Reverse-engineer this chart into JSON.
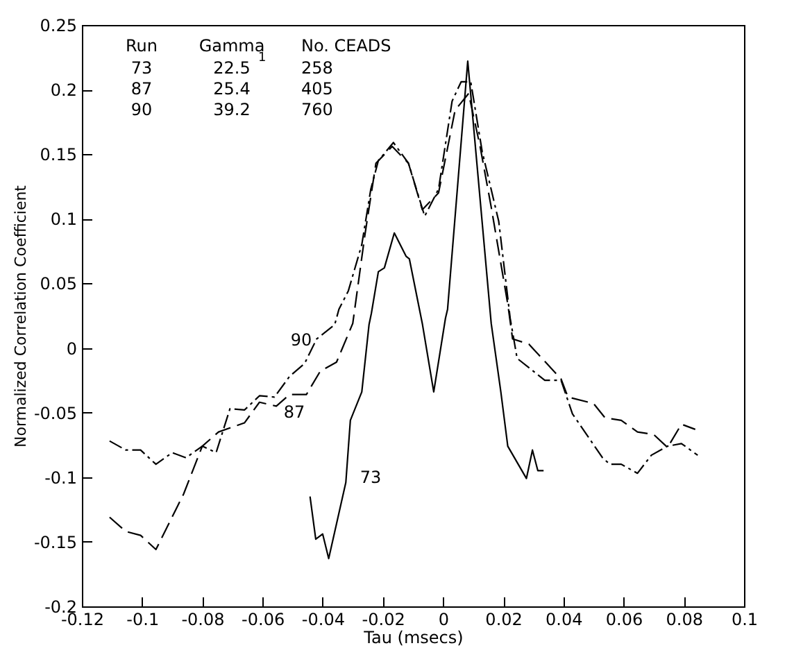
{
  "chart_data": {
    "type": "line",
    "xlabel": "Tau (msecs)",
    "ylabel": "Normalized Correlation Coefficient",
    "xlim": [
      -0.12,
      0.1
    ],
    "xticks": [
      -0.12,
      -0.1,
      -0.08,
      -0.06,
      -0.04,
      -0.02,
      0,
      0.02,
      0.04,
      0.06,
      0.08,
      0.1
    ],
    "ylim": [
      -0.2,
      0.25
    ],
    "yticks": [
      -0.2,
      -0.15,
      -0.1,
      -0.05,
      0,
      0.05,
      0.1,
      0.15,
      0.2,
      0.25
    ],
    "grid": false,
    "annotations": [
      "Run",
      "Gamma$_{1}$",
      "No. CEADS",
      "73",
      "22.5",
      "258",
      "87",
      "25.4",
      "405",
      "90",
      "39.2",
      "760"
    ],
    "series": [
      {
        "name": "73",
        "color": "#000000",
        "line_style": "solid",
        "x": [
          -0.0442,
          -0.0423,
          -0.04,
          -0.038,
          -0.0323,
          -0.0308,
          -0.027,
          -0.0246,
          -0.0238,
          -0.0215,
          -0.0195,
          -0.0162,
          -0.0123,
          -0.0112,
          -0.0069,
          -0.0031,
          0.0008,
          0.0015,
          0.0082,
          0.016,
          0.0192,
          0.0215,
          0.0277,
          0.0297,
          0.0315,
          0.0334
        ],
        "values": [
          -0.115,
          -0.148,
          -0.144,
          -0.163,
          -0.104,
          -0.056,
          -0.034,
          0.018,
          0.027,
          0.059,
          0.062,
          0.089,
          0.071,
          0.069,
          0.019,
          -0.034,
          0.023,
          0.03,
          0.222,
          0.019,
          -0.034,
          -0.076,
          -0.101,
          -0.079,
          -0.095,
          -0.095
        ]
      },
      {
        "name": "87",
        "color": "#000000",
        "line_style": "dashed",
        "x": [
          -0.1108,
          -0.1054,
          -0.1005,
          -0.0954,
          -0.0862,
          -0.08,
          -0.0746,
          -0.066,
          -0.061,
          -0.0554,
          -0.051,
          -0.0454,
          -0.0408,
          -0.0354,
          -0.03,
          -0.026,
          -0.0223,
          -0.0169,
          -0.0115,
          -0.0069,
          -0.0015,
          0.004,
          0.0085,
          0.0123,
          0.016,
          0.0215,
          0.0231,
          0.0285,
          0.0392,
          0.0415,
          0.05,
          0.0538,
          0.0592,
          0.0646,
          0.07,
          0.0746,
          0.0792,
          0.0838
        ],
        "values": [
          -0.131,
          -0.142,
          -0.145,
          -0.156,
          -0.113,
          -0.076,
          -0.065,
          -0.058,
          -0.042,
          -0.045,
          -0.036,
          -0.036,
          -0.018,
          -0.011,
          0.019,
          0.087,
          0.143,
          0.156,
          0.143,
          0.107,
          0.12,
          0.184,
          0.197,
          0.156,
          0.109,
          0.034,
          0.007,
          0.003,
          -0.024,
          -0.038,
          -0.043,
          -0.054,
          -0.056,
          -0.065,
          -0.067,
          -0.077,
          -0.059,
          -0.063
        ]
      },
      {
        "name": "90",
        "color": "#000000",
        "line_style": "dotted",
        "x": [
          -0.1108,
          -0.1054,
          -0.1005,
          -0.0954,
          -0.09,
          -0.0854,
          -0.08,
          -0.0754,
          -0.0708,
          -0.066,
          -0.061,
          -0.056,
          -0.051,
          -0.046,
          -0.042,
          -0.036,
          -0.0346,
          -0.0315,
          -0.027,
          -0.024,
          -0.0215,
          -0.0165,
          -0.0115,
          -0.0061,
          -0.0015,
          0.003,
          0.006,
          0.0092,
          0.013,
          0.0185,
          0.0223,
          0.0246,
          0.0338,
          0.0392,
          0.043,
          0.053,
          0.0554,
          0.0592,
          0.0646,
          0.0692,
          0.0746,
          0.0792,
          0.0846
        ],
        "values": [
          -0.072,
          -0.079,
          -0.079,
          -0.09,
          -0.081,
          -0.085,
          -0.076,
          -0.081,
          -0.047,
          -0.048,
          -0.037,
          -0.038,
          -0.022,
          -0.012,
          0.007,
          0.018,
          0.03,
          0.044,
          0.08,
          0.123,
          0.145,
          0.159,
          0.143,
          0.102,
          0.123,
          0.191,
          0.206,
          0.206,
          0.152,
          0.098,
          0.023,
          -0.008,
          -0.025,
          -0.025,
          -0.051,
          -0.085,
          -0.09,
          -0.09,
          -0.097,
          -0.083,
          -0.076,
          -0.074,
          -0.083
        ]
      }
    ]
  }
}
